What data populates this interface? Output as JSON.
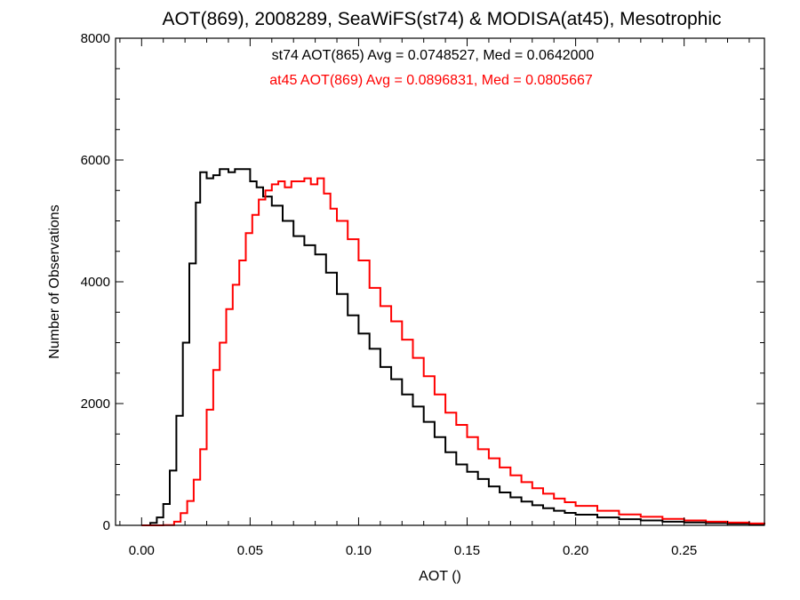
{
  "chart_data": {
    "type": "line",
    "title": "AOT(869), 2008289, SeaWiFS(st74) & MODISA(at45), Mesotrophic",
    "xlabel": "AOT ()",
    "ylabel": "Number of Observations",
    "xlim": [
      -0.012,
      0.287
    ],
    "ylim": [
      0,
      8000
    ],
    "x_ticks": [
      0.0,
      0.05,
      0.1,
      0.15,
      0.2,
      0.25
    ],
    "x_tick_labels": [
      "0.00",
      "0.05",
      "0.10",
      "0.15",
      "0.20",
      "0.25"
    ],
    "y_ticks": [
      0,
      2000,
      4000,
      6000,
      8000
    ],
    "y_tick_labels": [
      "0",
      "2000",
      "4000",
      "6000",
      "8000"
    ],
    "grid": false,
    "annotations": [
      {
        "text": "st74 AOT(865) Avg = 0.0748527, Med = 0.0642000",
        "color": "#000000"
      },
      {
        "text": "at45 AOT(869) Avg = 0.0896831, Med = 0.0805667",
        "color": "#ff0000"
      }
    ],
    "series": [
      {
        "color": "#000000",
        "points": [
          [
            0.0,
            0
          ],
          [
            0.004,
            40
          ],
          [
            0.007,
            130
          ],
          [
            0.01,
            350
          ],
          [
            0.013,
            900
          ],
          [
            0.016,
            1800
          ],
          [
            0.019,
            3000
          ],
          [
            0.022,
            4300
          ],
          [
            0.025,
            5300
          ],
          [
            0.027,
            5800
          ],
          [
            0.03,
            5700
          ],
          [
            0.033,
            5750
          ],
          [
            0.036,
            5850
          ],
          [
            0.04,
            5800
          ],
          [
            0.043,
            5850
          ],
          [
            0.046,
            5850
          ],
          [
            0.05,
            5650
          ],
          [
            0.053,
            5550
          ],
          [
            0.056,
            5400
          ],
          [
            0.06,
            5250
          ],
          [
            0.065,
            5000
          ],
          [
            0.07,
            4750
          ],
          [
            0.075,
            4600
          ],
          [
            0.08,
            4450
          ],
          [
            0.085,
            4150
          ],
          [
            0.09,
            3800
          ],
          [
            0.095,
            3450
          ],
          [
            0.1,
            3150
          ],
          [
            0.105,
            2900
          ],
          [
            0.11,
            2600
          ],
          [
            0.115,
            2400
          ],
          [
            0.12,
            2150
          ],
          [
            0.125,
            1950
          ],
          [
            0.13,
            1700
          ],
          [
            0.135,
            1450
          ],
          [
            0.14,
            1200
          ],
          [
            0.145,
            1000
          ],
          [
            0.15,
            880
          ],
          [
            0.155,
            760
          ],
          [
            0.16,
            640
          ],
          [
            0.165,
            540
          ],
          [
            0.17,
            460
          ],
          [
            0.175,
            390
          ],
          [
            0.18,
            330
          ],
          [
            0.185,
            280
          ],
          [
            0.19,
            240
          ],
          [
            0.195,
            205
          ],
          [
            0.2,
            175
          ],
          [
            0.21,
            130
          ],
          [
            0.22,
            100
          ],
          [
            0.23,
            80
          ],
          [
            0.24,
            60
          ],
          [
            0.25,
            48
          ],
          [
            0.26,
            38
          ],
          [
            0.27,
            28
          ],
          [
            0.28,
            20
          ],
          [
            0.287,
            15
          ]
        ]
      },
      {
        "color": "#ff0000",
        "points": [
          [
            0.0,
            0
          ],
          [
            0.01,
            5
          ],
          [
            0.015,
            60
          ],
          [
            0.018,
            200
          ],
          [
            0.021,
            400
          ],
          [
            0.024,
            750
          ],
          [
            0.027,
            1250
          ],
          [
            0.03,
            1900
          ],
          [
            0.033,
            2550
          ],
          [
            0.036,
            3000
          ],
          [
            0.039,
            3550
          ],
          [
            0.042,
            3950
          ],
          [
            0.045,
            4350
          ],
          [
            0.048,
            4800
          ],
          [
            0.051,
            5100
          ],
          [
            0.054,
            5350
          ],
          [
            0.057,
            5500
          ],
          [
            0.06,
            5600
          ],
          [
            0.063,
            5650
          ],
          [
            0.066,
            5550
          ],
          [
            0.069,
            5650
          ],
          [
            0.072,
            5650
          ],
          [
            0.075,
            5700
          ],
          [
            0.078,
            5600
          ],
          [
            0.081,
            5700
          ],
          [
            0.084,
            5450
          ],
          [
            0.087,
            5200
          ],
          [
            0.09,
            5000
          ],
          [
            0.095,
            4700
          ],
          [
            0.1,
            4350
          ],
          [
            0.105,
            3900
          ],
          [
            0.11,
            3600
          ],
          [
            0.115,
            3350
          ],
          [
            0.12,
            3050
          ],
          [
            0.125,
            2750
          ],
          [
            0.13,
            2450
          ],
          [
            0.135,
            2150
          ],
          [
            0.14,
            1850
          ],
          [
            0.145,
            1650
          ],
          [
            0.15,
            1450
          ],
          [
            0.155,
            1250
          ],
          [
            0.16,
            1100
          ],
          [
            0.165,
            950
          ],
          [
            0.17,
            820
          ],
          [
            0.175,
            710
          ],
          [
            0.18,
            610
          ],
          [
            0.185,
            520
          ],
          [
            0.19,
            440
          ],
          [
            0.195,
            380
          ],
          [
            0.2,
            320
          ],
          [
            0.21,
            240
          ],
          [
            0.22,
            180
          ],
          [
            0.23,
            140
          ],
          [
            0.24,
            105
          ],
          [
            0.25,
            80
          ],
          [
            0.26,
            60
          ],
          [
            0.27,
            45
          ],
          [
            0.28,
            30
          ],
          [
            0.287,
            20
          ]
        ]
      }
    ]
  }
}
